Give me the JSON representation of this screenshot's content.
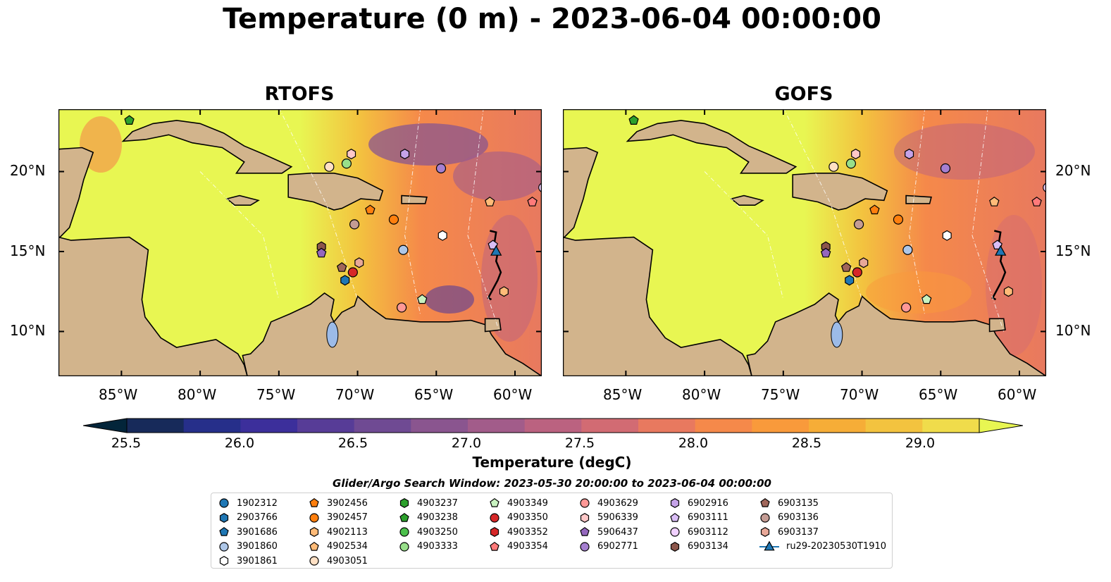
{
  "title": "Temperature (0 m) - 2023-06-04 00:00:00",
  "panels": [
    {
      "title": "RTOFS"
    },
    {
      "title": "GOFS"
    }
  ],
  "axes": {
    "lon_labels": [
      "85°W",
      "80°W",
      "75°W",
      "70°W",
      "65°W",
      "60°W"
    ],
    "lat_labels": [
      "20°N",
      "15°N",
      "10°N"
    ]
  },
  "colorbar": {
    "title": "Temperature (degC)",
    "tick_labels": [
      "25.5",
      "26.0",
      "26.5",
      "27.0",
      "27.5",
      "28.0",
      "28.5",
      "29.0"
    ],
    "range": [
      25.5,
      29.25
    ],
    "extend": "both",
    "colors": [
      "#03253a",
      "#172a5a",
      "#262f8a",
      "#3c2f9b",
      "#573c97",
      "#6f4a93",
      "#8a558f",
      "#a25c8a",
      "#bb6280",
      "#d26b73",
      "#e8795f",
      "#f5894a",
      "#f99a3b",
      "#f6ad37",
      "#f3c33f",
      "#f0dc4b",
      "#e8f652"
    ]
  },
  "search_window": "Glider/Argo Search Window: 2023-05-30 20:00:00 to 2023-06-04 00:00:00",
  "legend": [
    {
      "label": "1902312",
      "marker": "circle",
      "color": "#1f77b4"
    },
    {
      "label": "2903766",
      "marker": "hexagon",
      "color": "#1f77b4"
    },
    {
      "label": "3901686",
      "marker": "pentagon",
      "color": "#1f77b4"
    },
    {
      "label": "3901860",
      "marker": "circle",
      "color": "#aec7e8"
    },
    {
      "label": "3901861",
      "marker": "hexagon",
      "color": "#ffffff"
    },
    {
      "label": "3902456",
      "marker": "pentagon",
      "color": "#ff7f0e"
    },
    {
      "label": "3902457",
      "marker": "circle",
      "color": "#ff7f0e"
    },
    {
      "label": "4902113",
      "marker": "hexagon",
      "color": "#ffbb78"
    },
    {
      "label": "4902534",
      "marker": "pentagon",
      "color": "#ffbb78"
    },
    {
      "label": "4903051",
      "marker": "circle",
      "color": "#ffe0c4"
    },
    {
      "label": "4903237",
      "marker": "hexagon",
      "color": "#2ca02c"
    },
    {
      "label": "4903238",
      "marker": "pentagon",
      "color": "#2ca02c"
    },
    {
      "label": "4903250",
      "marker": "circle",
      "color": "#4cc04c"
    },
    {
      "label": "4903333",
      "marker": "circle",
      "color": "#98df8a"
    },
    {
      "label": "4903349",
      "marker": "pentagon",
      "color": "#c8f2c0"
    },
    {
      "label": "4903350",
      "marker": "circle",
      "color": "#d62728"
    },
    {
      "label": "4903352",
      "marker": "hexagon",
      "color": "#d62728"
    },
    {
      "label": "4903354",
      "marker": "pentagon",
      "color": "#ff7a7a"
    },
    {
      "label": "4903629",
      "marker": "circle",
      "color": "#ff9896"
    },
    {
      "label": "5906339",
      "marker": "hexagon",
      "color": "#ffc8c8"
    },
    {
      "label": "5906437",
      "marker": "pentagon",
      "color": "#9467bd"
    },
    {
      "label": "6902771",
      "marker": "circle",
      "color": "#a57fd0"
    },
    {
      "label": "6902916",
      "marker": "hexagon",
      "color": "#c5a3e8"
    },
    {
      "label": "6903111",
      "marker": "pentagon",
      "color": "#d9bdf5"
    },
    {
      "label": "6903112",
      "marker": "circle",
      "color": "#f0d0ff"
    },
    {
      "label": "6903134",
      "marker": "hexagon",
      "color": "#8c564b"
    },
    {
      "label": "6903135",
      "marker": "pentagon",
      "color": "#a0665a"
    },
    {
      "label": "6903136",
      "marker": "circle",
      "color": "#c49c94"
    },
    {
      "label": "6903137",
      "marker": "hexagon",
      "color": "#e8a898"
    },
    {
      "label": "ru29-20230530T1910",
      "marker": "triangle-line",
      "color": "#1f77b4"
    }
  ],
  "map_markers": [
    {
      "id": "4903238",
      "lon": -84.5,
      "lat": 23.2
    },
    {
      "id": "4903051",
      "lon": -71.8,
      "lat": 20.3
    },
    {
      "id": "4903333",
      "lon": -70.7,
      "lat": 20.5
    },
    {
      "id": "5906339",
      "lon": -70.4,
      "lat": 21.1
    },
    {
      "id": "6902916",
      "lon": -67.0,
      "lat": 21.1
    },
    {
      "id": "6902771",
      "lon": -64.7,
      "lat": 20.2
    },
    {
      "id": "6903112",
      "lon": -58.2,
      "lat": 19.0
    },
    {
      "id": "3902456",
      "lon": -69.2,
      "lat": 17.6
    },
    {
      "id": "3902457",
      "lon": -67.7,
      "lat": 17.0
    },
    {
      "id": "6903136",
      "lon": -70.2,
      "lat": 16.7
    },
    {
      "id": "4902534",
      "lon": -61.6,
      "lat": 18.1
    },
    {
      "id": "4903354",
      "lon": -58.9,
      "lat": 18.1
    },
    {
      "id": "3901861",
      "lon": -64.6,
      "lat": 16.0
    },
    {
      "id": "3901860",
      "lon": -67.1,
      "lat": 15.1
    },
    {
      "id": "6903111",
      "lon": -61.4,
      "lat": 15.4
    },
    {
      "id": "ru29-20230530T1910",
      "lon": -61.2,
      "lat": 15.0
    },
    {
      "id": "6903134",
      "lon": -72.3,
      "lat": 15.3
    },
    {
      "id": "5906437",
      "lon": -72.3,
      "lat": 14.9
    },
    {
      "id": "6903135",
      "lon": -71.0,
      "lat": 14.0
    },
    {
      "id": "6903137",
      "lon": -69.9,
      "lat": 14.3
    },
    {
      "id": "4903350",
      "lon": -70.3,
      "lat": 13.7
    },
    {
      "id": "2903766",
      "lon": -70.8,
      "lat": 13.2
    },
    {
      "id": "4903349",
      "lon": -65.9,
      "lat": 12.0
    },
    {
      "id": "4903629",
      "lon": -67.2,
      "lat": 11.5
    },
    {
      "id": "4902113",
      "lon": -60.7,
      "lat": 12.5
    }
  ]
}
